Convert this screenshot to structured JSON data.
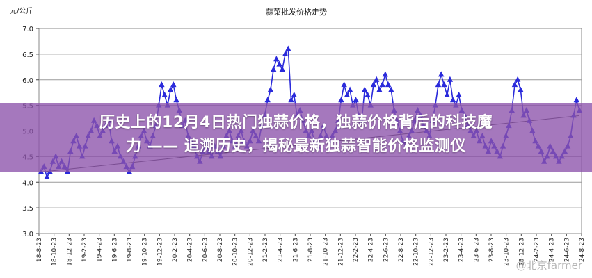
{
  "headline": {
    "line1": "历史上的12月4日热门独蒜价格，独蒜价格背后的科技魔",
    "line2": "力 —— 追溯历史，揭秘最新独蒜智能价格监测仪"
  },
  "watermark": "@北京farmer",
  "chart_data": {
    "type": "line",
    "title": "蒜菜批发价格走势",
    "ylabel": "元/公斤",
    "xlabel": "",
    "ylim": [
      3.0,
      7.0
    ],
    "yticks": [
      3.0,
      3.5,
      4.0,
      4.5,
      5.0,
      5.5,
      6.0,
      6.5,
      7.0
    ],
    "yticks_labels": [
      "3.0",
      "3.5",
      "4.0",
      "4.5",
      "5.0",
      "5.5",
      "6.0",
      "6.5",
      "7.0"
    ],
    "grid": true,
    "legend": "none",
    "x_labels": [
      "18-8-23",
      "18-10-23",
      "18-12-23",
      "19-2-23",
      "19-4-23",
      "19-6-23",
      "19-8-23",
      "19-10-23",
      "19-12-23",
      "20-2-23",
      "20-4-23",
      "20-6-23",
      "20-8-23",
      "20-10-23",
      "20-12-23",
      "21-2-23",
      "21-4-23",
      "21-6-23",
      "21-8-23",
      "21-10-23",
      "21-12-23",
      "22-2-23",
      "22-4-23",
      "22-6-23",
      "22-8-23",
      "22-10-23",
      "22-12-23",
      "23-2-23",
      "23-4-23",
      "23-6-23",
      "23-8-23",
      "23-10-23",
      "23-12-23",
      "24-2-23",
      "24-4-23",
      "24-6-23",
      "24-8-23"
    ],
    "series": [
      {
        "marker": "triangle",
        "color": "#2a2adb",
        "values": [
          4.2,
          4.3,
          4.1,
          4.2,
          4.4,
          4.5,
          4.3,
          4.4,
          4.3,
          4.2,
          4.6,
          4.8,
          4.9,
          4.7,
          4.5,
          4.7,
          4.9,
          5.0,
          5.2,
          5.1,
          4.9,
          5.0,
          5.1,
          5.2,
          4.8,
          4.6,
          4.7,
          4.5,
          4.4,
          4.3,
          4.2,
          4.3,
          4.5,
          4.7,
          4.9,
          5.0,
          4.8,
          4.7,
          4.9,
          5.1,
          5.5,
          5.9,
          5.7,
          5.5,
          5.8,
          5.9,
          5.6,
          5.4,
          5.1,
          5.2,
          4.9,
          4.8,
          4.7,
          4.5,
          4.4,
          4.6,
          4.8,
          4.6,
          4.5,
          4.7,
          4.6,
          4.5,
          4.7,
          4.9,
          5.0,
          4.8,
          4.7,
          4.9,
          5.0,
          4.8,
          4.7,
          4.8,
          5.0,
          4.9,
          4.8,
          5.1,
          5.3,
          5.6,
          5.8,
          6.2,
          6.4,
          6.3,
          6.2,
          6.5,
          6.6,
          5.6,
          5.7,
          5.3,
          5.4,
          5.2,
          5.0,
          4.9,
          5.0,
          4.8,
          4.7,
          4.9,
          5.1,
          4.9,
          4.8,
          4.9,
          5.0,
          5.2,
          5.6,
          5.9,
          5.7,
          5.8,
          5.5,
          5.6,
          5.3,
          5.2,
          5.8,
          5.7,
          5.5,
          5.9,
          6.0,
          5.8,
          5.9,
          6.1,
          5.9,
          5.8,
          5.4,
          5.2,
          5.0,
          4.8,
          4.7,
          4.9,
          5.0,
          5.2,
          5.4,
          5.3,
          5.1,
          5.0,
          4.9,
          5.2,
          5.5,
          5.9,
          6.1,
          5.9,
          5.7,
          6.0,
          5.6,
          5.5,
          5.7,
          5.4,
          5.3,
          5.1,
          5.0,
          4.9,
          5.0,
          4.8,
          4.9,
          4.7,
          4.6,
          4.8,
          4.7,
          4.6,
          4.5,
          4.7,
          4.9,
          5.1,
          5.4,
          5.9,
          6.0,
          5.8,
          5.3,
          5.4,
          5.2,
          5.0,
          4.8,
          4.7,
          4.6,
          4.4,
          4.5,
          4.7,
          4.6,
          4.5,
          4.4,
          4.5,
          4.6,
          4.7,
          4.9,
          5.3,
          5.6,
          5.4
        ]
      }
    ],
    "trend": {
      "values": [
        4.2,
        5.3
      ]
    }
  }
}
